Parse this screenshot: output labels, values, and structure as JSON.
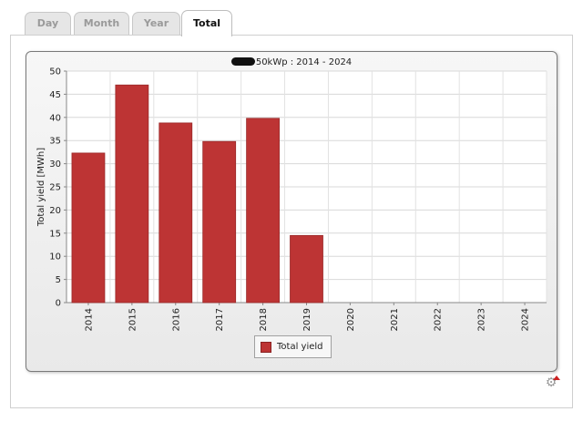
{
  "tabs": [
    {
      "label": "Day"
    },
    {
      "label": "Month"
    },
    {
      "label": "Year"
    },
    {
      "label": "Total",
      "active": true
    }
  ],
  "chart_data": {
    "type": "bar",
    "title": "50kWp : 2014 - 2024",
    "ylabel": "Total yield [MWh]",
    "xlabel": "",
    "categories": [
      "2014",
      "2015",
      "2016",
      "2017",
      "2018",
      "2019",
      "2020",
      "2021",
      "2022",
      "2023",
      "2024"
    ],
    "series": [
      {
        "name": "Total yield",
        "values": [
          32.3,
          47.0,
          38.8,
          34.8,
          39.8,
          14.5,
          null,
          null,
          null,
          null,
          null
        ],
        "color": "#bd3434"
      }
    ],
    "ylim": [
      0,
      50
    ],
    "yticks": [
      0,
      5,
      10,
      15,
      20,
      25,
      30,
      35,
      40,
      45,
      50
    ],
    "grid": true,
    "legend": "bottom-center"
  },
  "legend": {
    "label": "Total yield"
  },
  "icons": {
    "settings": "gear-icon"
  }
}
